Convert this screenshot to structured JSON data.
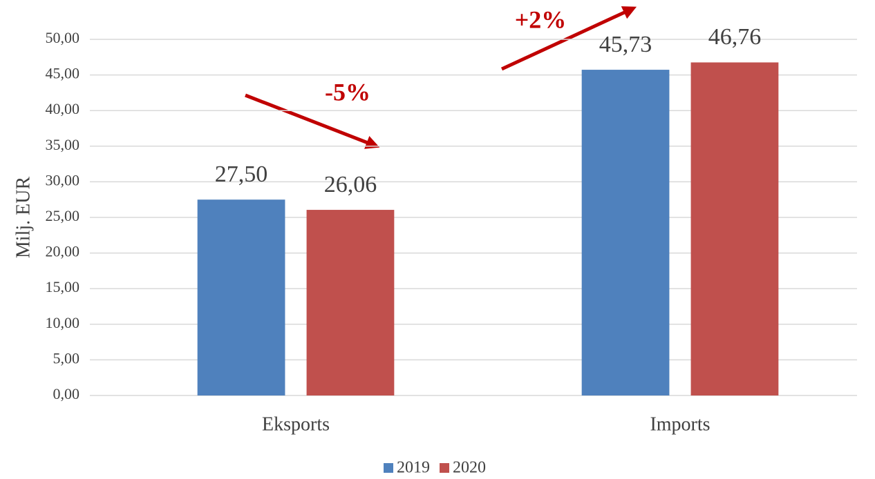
{
  "chart_data": {
    "type": "bar",
    "categories": [
      "Eksports",
      "Imports"
    ],
    "series": [
      {
        "name": "2019",
        "color": "#4f81bd",
        "values": [
          27.5,
          45.73
        ],
        "value_labels": [
          "27,50",
          "45,73"
        ]
      },
      {
        "name": "2020",
        "color": "#c0504d",
        "values": [
          26.06,
          46.76
        ],
        "value_labels": [
          "26,06",
          "46,76"
        ]
      }
    ],
    "ylabel": "Milj. EUR",
    "ylim": [
      0,
      50
    ],
    "yticks": [
      {
        "value": 0,
        "label": "0,00"
      },
      {
        "value": 5,
        "label": "5,00"
      },
      {
        "value": 10,
        "label": "10,00"
      },
      {
        "value": 15,
        "label": "15,00"
      },
      {
        "value": 20,
        "label": "20,00"
      },
      {
        "value": 25,
        "label": "25,00"
      },
      {
        "value": 30,
        "label": "30,00"
      },
      {
        "value": 35,
        "label": "35,00"
      },
      {
        "value": 40,
        "label": "40,00"
      },
      {
        "value": 45,
        "label": "45,00"
      },
      {
        "value": 50,
        "label": "50,00"
      }
    ],
    "grid": true,
    "legend": "bottom",
    "annotations": [
      "-5%",
      "+2%"
    ]
  }
}
